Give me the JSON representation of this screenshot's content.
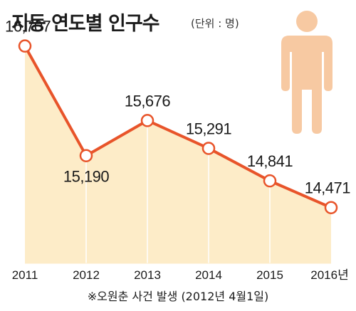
{
  "title": "지동 연도별 인구수",
  "unit_label": "(단위 : 명)",
  "footnote": "※오원춘 사건 발생 (2012년 4월1일)",
  "icon": "person-silhouette-icon",
  "colors": {
    "line": "#e8542a",
    "area": "#fdecc8",
    "marker_fill": "#ffffff",
    "person": "#f7c9a2",
    "grid": "#ffffff"
  },
  "chart_data": {
    "type": "area",
    "categories": [
      "2011",
      "2012",
      "2013",
      "2014",
      "2015",
      "2016년"
    ],
    "values": [
      16707,
      15190,
      15676,
      15291,
      14841,
      14471
    ],
    "value_labels": [
      "16,707",
      "15,190",
      "15,676",
      "15,291",
      "14,841",
      "14,471"
    ],
    "title": "지동 연도별 인구수",
    "xlabel": "",
    "ylabel": "",
    "ylim": [
      13700,
      16950
    ],
    "grid": "vertical",
    "markers": "circle"
  }
}
